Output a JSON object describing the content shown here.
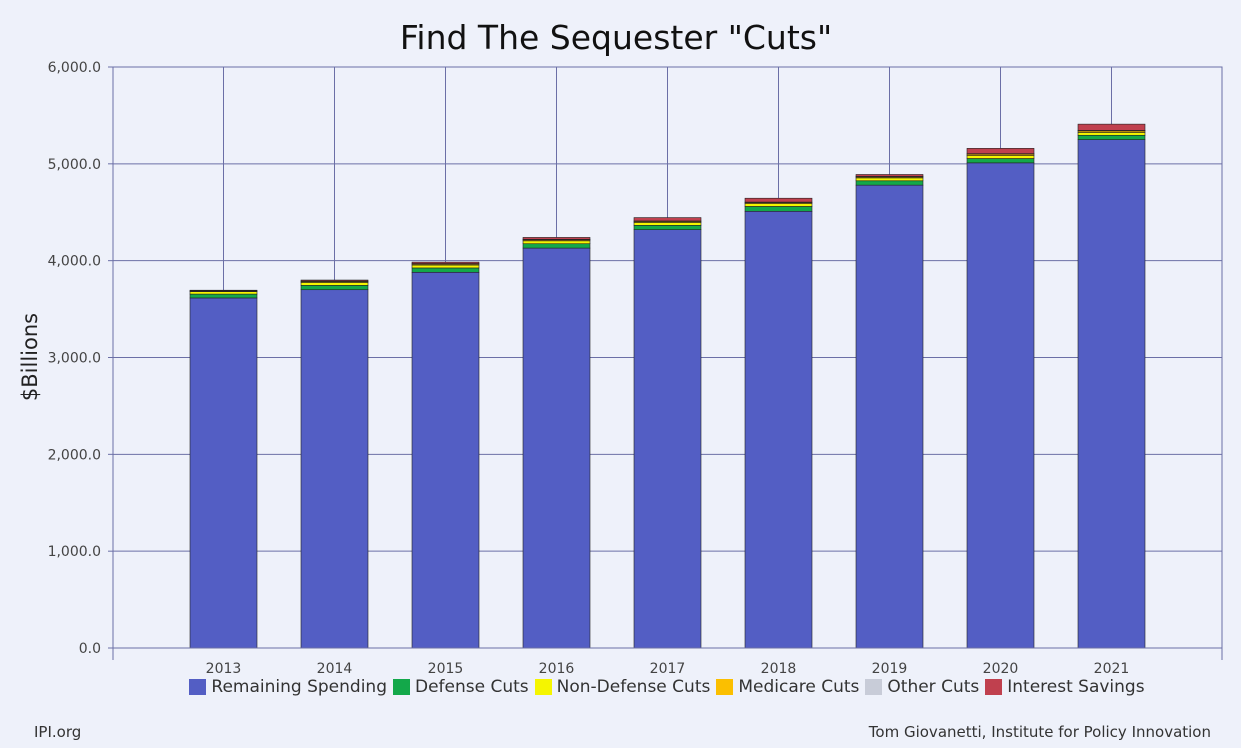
{
  "page": {
    "source_left": "IPI.org",
    "source_right": "Tom Giovanetti, Institute for Policy Innovation"
  },
  "chart_data": {
    "type": "bar",
    "stacked": true,
    "title": "Find The Sequester \"Cuts\"",
    "xlabel": "",
    "ylabel": "$Billions",
    "ylim": [
      0,
      6000
    ],
    "yticks": [
      0,
      1000,
      2000,
      3000,
      4000,
      5000,
      6000
    ],
    "ytick_labels": [
      "0.0",
      "1,000.0",
      "2,000.0",
      "3,000.0",
      "4,000.0",
      "5,000.0",
      "6,000.0"
    ],
    "grid": true,
    "legend_position": "bottom",
    "categories": [
      "2013",
      "2014",
      "2015",
      "2016",
      "2017",
      "2018",
      "2019",
      "2020",
      "2021"
    ],
    "series": [
      {
        "name": "Remaining Spending",
        "color": "#535ec4",
        "values": [
          3615,
          3700,
          3880,
          4130,
          4320,
          4510,
          4780,
          5010,
          5250
        ]
      },
      {
        "name": "Defense Cuts",
        "color": "#13a84a",
        "values": [
          40,
          45,
          45,
          45,
          45,
          50,
          45,
          45,
          45
        ]
      },
      {
        "name": "Non-Defense Cuts",
        "color": "#f5f500",
        "values": [
          25,
          30,
          30,
          30,
          30,
          30,
          30,
          30,
          30
        ]
      },
      {
        "name": "Medicare Cuts",
        "color": "#fbbf00",
        "values": [
          5,
          10,
          10,
          10,
          10,
          10,
          10,
          15,
          15
        ]
      },
      {
        "name": "Other Cuts",
        "color": "#c8ccd8",
        "values": [
          5,
          5,
          5,
          5,
          5,
          5,
          5,
          5,
          5
        ]
      },
      {
        "name": "Interest Savings",
        "color": "#c0404e",
        "values": [
          5,
          10,
          15,
          20,
          35,
          40,
          20,
          55,
          65
        ]
      }
    ]
  }
}
